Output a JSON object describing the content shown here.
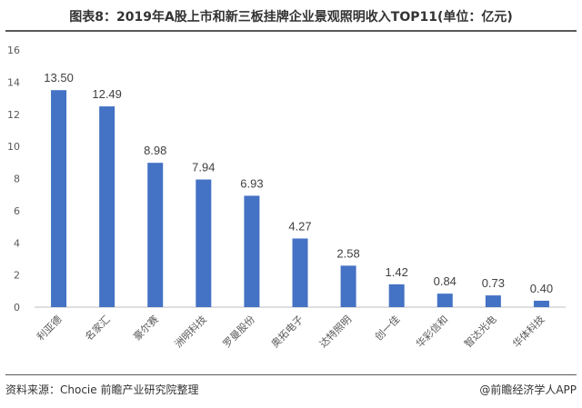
{
  "title": "图表8：2019年A股上市和新三板挂牌企业景观照明收入TOP11(单位：亿元)",
  "source": "资料来源：Chocie 前瞻产业研究院整理",
  "brand": "@前瞻经济学人APP",
  "colors": {
    "bar": "#4472C4",
    "axis": "#BFBFBF",
    "text": "#595959"
  },
  "chart_data": {
    "type": "bar",
    "title": "图表8：2019年A股上市和新三板挂牌企业景观照明收入TOP11(单位：亿元)",
    "xlabel": "",
    "ylabel": "",
    "ylim": [
      0,
      16
    ],
    "yticks": [
      0,
      2,
      4,
      6,
      8,
      10,
      12,
      14,
      16
    ],
    "grid": false,
    "categories": [
      "利亚德",
      "名家汇",
      "豪尔赛",
      "洲明科技",
      "罗曼股份",
      "奥拓电子",
      "达特照明",
      "创一佳",
      "华彩信和",
      "智达光电",
      "华体科技"
    ],
    "values": [
      13.5,
      12.49,
      8.98,
      7.94,
      6.93,
      4.27,
      2.58,
      1.42,
      0.84,
      0.73,
      0.4
    ],
    "data_labels": [
      "13.50",
      "12.49",
      "8.98",
      "7.94",
      "6.93",
      "4.27",
      "2.58",
      "1.42",
      "0.84",
      "0.73",
      "0.40"
    ]
  }
}
